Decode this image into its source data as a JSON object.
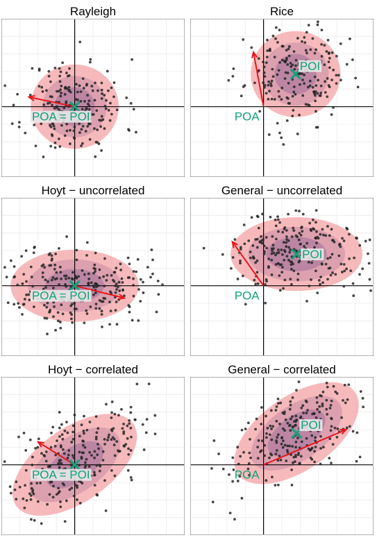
{
  "colors": {
    "panel_border": "#8c8c8c",
    "grid": "#ebebeb",
    "axis": "#000000",
    "point": "#262626",
    "arrow": "#e6161c",
    "marker": "#14a07a",
    "label": "#14a07a",
    "label_bg": "#e8e8e8",
    "ellipse_outer": "#f4a3a6",
    "ellipse_mid": "#c98aa4",
    "ellipse_inner": "#9e6f99"
  },
  "chart_data": [
    {
      "type": "scatter",
      "title": "Rayleigh",
      "xlim": [
        -4,
        6
      ],
      "ylim": [
        -4,
        5
      ],
      "poi": [
        0,
        0
      ],
      "poa": [
        0,
        0
      ],
      "arrow": {
        "from": [
          0,
          0
        ],
        "to": [
          -2.5,
          0.55
        ]
      },
      "ellipses": [
        {
          "rx": 2.4,
          "ry": 2.4,
          "angle": 0,
          "fill": "outer"
        },
        {
          "rx": 1.75,
          "ry": 1.75,
          "angle": 0,
          "fill": "mid"
        },
        {
          "rx": 1.1,
          "ry": 1.1,
          "angle": 0,
          "fill": "inner"
        }
      ],
      "cloud": {
        "n": 200,
        "sx": 1.35,
        "sy": 1.35,
        "angle": 0,
        "seed": 11
      },
      "labels": [
        {
          "text": "POA = POI",
          "at": "poi",
          "pos": "below-left"
        }
      ]
    },
    {
      "type": "scatter",
      "title": "Rice",
      "xlim": [
        -4,
        6
      ],
      "ylim": [
        -4,
        5
      ],
      "poi": [
        1.75,
        1.85
      ],
      "poa": [
        0,
        0
      ],
      "arrow": {
        "from": [
          0,
          0
        ],
        "to": [
          -0.55,
          3.1
        ]
      },
      "ellipses": [
        {
          "rx": 2.45,
          "ry": 2.45,
          "angle": 0,
          "fill": "outer"
        },
        {
          "rx": 1.8,
          "ry": 1.8,
          "angle": 0,
          "fill": "mid"
        },
        {
          "rx": 1.15,
          "ry": 1.15,
          "angle": 0,
          "fill": "inner"
        }
      ],
      "cloud": {
        "n": 200,
        "sx": 1.35,
        "sy": 1.35,
        "angle": 0,
        "seed": 23
      },
      "labels": [
        {
          "text": "POI",
          "at": "poi",
          "pos": "above-right"
        },
        {
          "text": "POA",
          "at": "poa",
          "pos": "below-left"
        }
      ]
    },
    {
      "type": "scatter",
      "title": "Hoyt − uncorrelated",
      "xlim": [
        -4,
        6
      ],
      "ylim": [
        -4,
        5
      ],
      "poi": [
        0,
        0
      ],
      "poa": [
        0,
        0
      ],
      "arrow": {
        "from": [
          0,
          0
        ],
        "to": [
          2.7,
          -0.7
        ]
      },
      "ellipses": [
        {
          "rx": 3.5,
          "ry": 2.05,
          "angle": 0,
          "fill": "outer"
        },
        {
          "rx": 2.55,
          "ry": 1.5,
          "angle": 0,
          "fill": "mid"
        },
        {
          "rx": 1.6,
          "ry": 0.95,
          "angle": 0,
          "fill": "inner"
        }
      ],
      "cloud": {
        "n": 240,
        "sx": 2.0,
        "sy": 1.15,
        "angle": 0,
        "seed": 37
      },
      "labels": [
        {
          "text": "POA = POI",
          "at": "poi",
          "pos": "below-left"
        }
      ]
    },
    {
      "type": "scatter",
      "title": "General − uncorrelated",
      "xlim": [
        -4,
        6
      ],
      "ylim": [
        -4,
        5
      ],
      "poi": [
        1.8,
        1.8
      ],
      "poa": [
        0,
        0
      ],
      "arrow": {
        "from": [
          0,
          0
        ],
        "to": [
          -1.7,
          2.5
        ]
      },
      "ellipses": [
        {
          "rx": 3.6,
          "ry": 2.1,
          "angle": 0,
          "fill": "outer"
        },
        {
          "rx": 2.65,
          "ry": 1.55,
          "angle": 0,
          "fill": "mid"
        },
        {
          "rx": 1.65,
          "ry": 0.98,
          "angle": 0,
          "fill": "inner"
        }
      ],
      "cloud": {
        "n": 240,
        "sx": 2.0,
        "sy": 1.15,
        "angle": 0,
        "seed": 51
      },
      "labels": [
        {
          "text": "POI",
          "at": "poi",
          "pos": "right"
        },
        {
          "text": "POA",
          "at": "poa",
          "pos": "below-left"
        }
      ]
    },
    {
      "type": "scatter",
      "title": "Hoyt − correlated",
      "xlim": [
        -4,
        6
      ],
      "ylim": [
        -4,
        5
      ],
      "poi": [
        0,
        0
      ],
      "poa": [
        0,
        0
      ],
      "arrow": {
        "from": [
          0,
          0
        ],
        "to": [
          -2.0,
          1.3
        ]
      },
      "ellipses": [
        {
          "rx": 3.9,
          "ry": 2.1,
          "angle": 35,
          "fill": "outer"
        },
        {
          "rx": 2.85,
          "ry": 1.55,
          "angle": 35,
          "fill": "mid"
        },
        {
          "rx": 1.8,
          "ry": 0.98,
          "angle": 35,
          "fill": "inner"
        }
      ],
      "cloud": {
        "n": 240,
        "sx": 2.15,
        "sy": 1.15,
        "angle": 35,
        "seed": 67
      },
      "labels": [
        {
          "text": "POA = POI",
          "at": "poi",
          "pos": "below-left"
        }
      ]
    },
    {
      "type": "scatter",
      "title": "General − correlated",
      "xlim": [
        -4,
        6
      ],
      "ylim": [
        -4,
        5
      ],
      "poi": [
        1.8,
        1.8
      ],
      "poa": [
        0,
        0
      ],
      "arrow": {
        "from": [
          0,
          0
        ],
        "to": [
          4.5,
          2.0
        ]
      },
      "ellipses": [
        {
          "rx": 3.9,
          "ry": 2.1,
          "angle": 35,
          "fill": "outer"
        },
        {
          "rx": 2.85,
          "ry": 1.55,
          "angle": 35,
          "fill": "mid"
        },
        {
          "rx": 1.8,
          "ry": 0.98,
          "angle": 35,
          "fill": "inner"
        }
      ],
      "cloud": {
        "n": 240,
        "sx": 2.15,
        "sy": 1.15,
        "angle": 35,
        "seed": 83
      },
      "labels": [
        {
          "text": "POI",
          "at": "poi",
          "pos": "above-right"
        },
        {
          "text": "POA",
          "at": "poa",
          "pos": "below-left"
        }
      ]
    }
  ]
}
